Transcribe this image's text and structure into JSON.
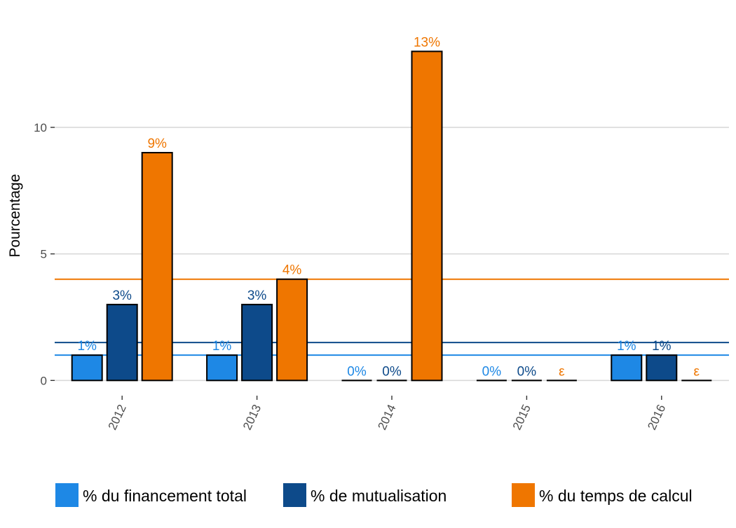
{
  "chart_data": {
    "type": "bar",
    "title": "",
    "xlabel": "",
    "ylabel": "Pourcentage",
    "categories": [
      "2012",
      "2013",
      "2014",
      "2015",
      "2016"
    ],
    "ylim": [
      -0.6,
      14.2
    ],
    "yticks": [
      0,
      5,
      10
    ],
    "grid": true,
    "legend_position": "bottom",
    "series": [
      {
        "name": "% du financement total",
        "color": "#1e88e5",
        "values": [
          1,
          1,
          0,
          0,
          1
        ],
        "labels": [
          "1%",
          "1%",
          "0%",
          "0%",
          "1%"
        ],
        "reference_line": 1
      },
      {
        "name": "% de mutualisation",
        "color": "#0d4a8a",
        "values": [
          3,
          3,
          0,
          0,
          1
        ],
        "labels": [
          "3%",
          "3%",
          "0%",
          "0%",
          "1%"
        ],
        "reference_line": 1.5
      },
      {
        "name": "% du temps de calcul",
        "color": "#ef7600",
        "values": [
          9,
          4,
          13,
          0,
          0
        ],
        "labels": [
          "9%",
          "4%",
          "13%",
          "ε",
          "ε"
        ],
        "reference_line": 4
      }
    ]
  }
}
